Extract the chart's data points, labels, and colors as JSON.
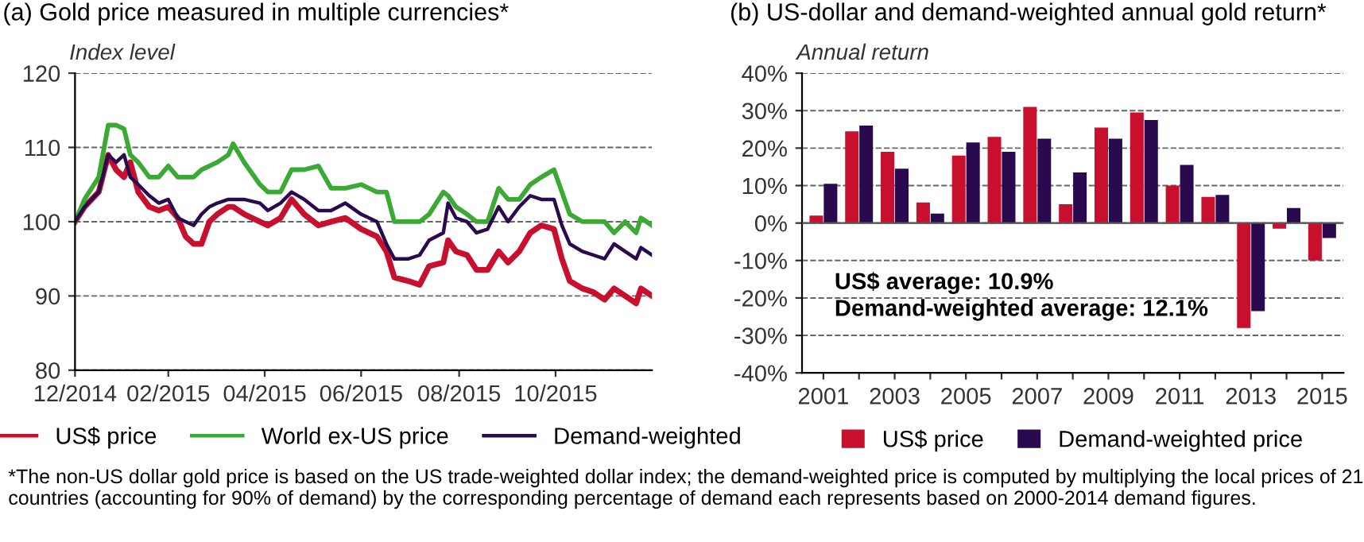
{
  "chart_data": [
    {
      "type": "line",
      "title": "(a) Gold price measured in multiple currencies*",
      "ylabel": "Index level",
      "x": [
        "2014-12-31",
        "2015-01-06",
        "2015-01-15",
        "2015-01-21",
        "2015-01-26",
        "2015-01-31",
        "2015-02-04",
        "2015-02-09",
        "2015-02-16",
        "2015-02-22",
        "2015-02-28",
        "2015-03-06",
        "2015-03-11",
        "2015-03-16",
        "2015-03-21",
        "2015-03-26",
        "2015-03-31",
        "2015-04-07",
        "2015-04-10",
        "2015-04-17",
        "2015-04-27",
        "2015-05-02",
        "2015-05-10",
        "2015-05-17",
        "2015-05-25",
        "2015-06-03",
        "2015-06-11",
        "2015-06-20",
        "2015-06-30",
        "2015-07-10",
        "2015-07-16",
        "2015-07-21",
        "2015-07-30",
        "2015-08-06",
        "2015-08-12",
        "2015-08-21",
        "2015-08-24",
        "2015-08-29",
        "2015-09-05",
        "2015-09-11",
        "2015-09-18",
        "2015-09-25",
        "2015-10-01",
        "2015-10-08",
        "2015-10-15",
        "2015-10-22",
        "2015-10-30",
        "2015-11-04",
        "2015-11-09",
        "2015-11-17",
        "2015-11-24",
        "2015-12-01",
        "2015-12-07",
        "2015-12-14",
        "2015-12-21",
        "2015-12-24",
        "2015-12-31"
      ],
      "series": [
        {
          "name": "US$ price",
          "color": "#c8102e",
          "values": [
            100,
            102,
            104,
            109,
            107,
            106,
            108,
            104,
            102,
            101.5,
            102,
            100.5,
            98,
            97,
            97,
            100,
            101,
            102,
            102,
            101,
            100,
            99.5,
            100.5,
            103,
            101,
            99.5,
            100,
            100.5,
            99,
            98,
            96,
            92.5,
            92,
            91.5,
            94,
            94.5,
            97.5,
            96,
            95.5,
            93.5,
            93.5,
            96,
            94.5,
            96,
            98.5,
            99.5,
            99,
            95,
            92,
            91,
            90.5,
            89.5,
            91,
            90,
            89,
            91,
            90
          ]
        },
        {
          "name": "World ex-US price",
          "color": "#3aaa35",
          "values": [
            100,
            103,
            106,
            113,
            113,
            112.5,
            109,
            108,
            106,
            106,
            107.5,
            106,
            106,
            106,
            107,
            107.5,
            108,
            109,
            110.5,
            108,
            105,
            104,
            104,
            107,
            107,
            107.5,
            104.5,
            104.5,
            105,
            104,
            104,
            100,
            100,
            100,
            101,
            104,
            103.5,
            102,
            101,
            100,
            100,
            104.5,
            103,
            103,
            105,
            106,
            107,
            104,
            101,
            100,
            100,
            100,
            98.5,
            100,
            98.5,
            100.5,
            99.5
          ]
        },
        {
          "name": "Demand-weighted",
          "color": "#2a0a4f",
          "values": [
            100,
            102,
            104,
            109,
            108,
            109,
            106,
            105,
            103.5,
            102.5,
            103,
            100.5,
            100,
            99.5,
            101,
            102,
            102.5,
            103,
            103,
            103,
            102.5,
            101.5,
            102.5,
            104,
            103,
            101.5,
            101.5,
            102.5,
            101,
            100,
            97,
            95,
            95,
            95.5,
            97.5,
            98.5,
            102.5,
            100.5,
            100,
            98.5,
            99,
            102,
            100,
            102,
            103.5,
            103,
            103,
            99.5,
            97,
            96,
            95.5,
            95,
            97,
            96,
            95,
            96.5,
            95.5
          ]
        }
      ],
      "xlim": [
        "2014-12-31",
        "2015-12-31"
      ],
      "xticks": [
        {
          "value": "2014-12-31",
          "label": "12/2014"
        },
        {
          "value": "2015-02-28",
          "label": "02/2015"
        },
        {
          "value": "2015-04-30",
          "label": "04/2015"
        },
        {
          "value": "2015-06-30",
          "label": "06/2015"
        },
        {
          "value": "2015-08-31",
          "label": "08/2015"
        },
        {
          "value": "2015-10-31",
          "label": "10/2015"
        }
      ],
      "ylim": [
        80,
        120
      ],
      "yticks": [
        80,
        90,
        100,
        110,
        120
      ],
      "grid": "y",
      "legend": "bottom",
      "line_style": "solid",
      "annotations": [
        "*The non-US dollar gold price is based on the US trade-weighted dollar index; the demand-weighted price is computed by multiplying the local prices of 21 countries (accounting for 90% of demand) by the corresponding percentage of demand each represents based on 2000-2014 demand figures."
      ]
    },
    {
      "type": "bar",
      "title": "(b) US-dollar and demand-weighted annual gold return*",
      "ylabel": "Annual return",
      "categories": [
        "2001",
        null,
        "2003",
        null,
        "2005",
        null,
        "2007",
        null,
        "2009",
        null,
        "2011",
        null,
        "2013",
        null,
        "2015"
      ],
      "series": [
        {
          "name": "US$ price",
          "color": "#c8102e",
          "values": [
            2,
            24.5,
            19,
            5.5,
            18,
            23,
            31,
            5,
            25.5,
            29.5,
            10,
            7,
            -28,
            -1.5,
            -10
          ]
        },
        {
          "name": "Demand-weighted price",
          "color": "#2a0a4f",
          "values": [
            10.5,
            26,
            14.5,
            2.5,
            21.5,
            19,
            22.5,
            13.5,
            22.5,
            27.5,
            15.5,
            7.5,
            -23.5,
            4,
            -4
          ]
        }
      ],
      "ylim": [
        -40,
        40
      ],
      "yticks": [
        {
          "value": -40,
          "label": "-40%"
        },
        {
          "value": -30,
          "label": "-30%"
        },
        {
          "value": -20,
          "label": "-20%"
        },
        {
          "value": -10,
          "label": "-10%"
        },
        {
          "value": 0,
          "label": "0%"
        },
        {
          "value": 10,
          "label": "10%"
        },
        {
          "value": 20,
          "label": "20%"
        },
        {
          "value": 30,
          "label": "30%"
        },
        {
          "value": 40,
          "label": "40%"
        }
      ],
      "grid": "y",
      "legend": "bottom",
      "annotations": [
        "US$ average: 10.9%",
        "Demand-weighted average: 12.1%"
      ]
    }
  ]
}
